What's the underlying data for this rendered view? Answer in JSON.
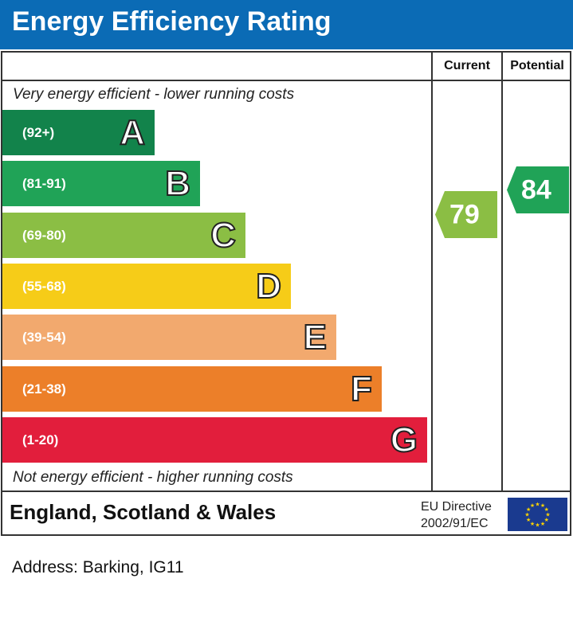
{
  "title": "Energy Efficiency Rating",
  "columns": {
    "current": "Current",
    "potential": "Potential"
  },
  "top_caption": "Very energy efficient - lower running costs",
  "bottom_caption": "Not energy efficient - higher running costs",
  "chart_data": {
    "type": "bar",
    "categories": [
      "A",
      "B",
      "C",
      "D",
      "E",
      "F",
      "G"
    ],
    "ranges": [
      "(92+)",
      "(81-91)",
      "(69-80)",
      "(55-68)",
      "(39-54)",
      "(21-38)",
      "(1-20)"
    ],
    "colors": [
      "#12834b",
      "#20a357",
      "#8bbe44",
      "#f6cc18",
      "#f2a96e",
      "#ec7f29",
      "#e21e3c"
    ],
    "current": {
      "value": 79,
      "band": "C",
      "color": "#8bbe44"
    },
    "potential": {
      "value": 84,
      "band": "B",
      "color": "#20a357"
    }
  },
  "footer": {
    "region": "England, Scotland & Wales",
    "directive_line1": "EU Directive",
    "directive_line2": "2002/91/EC"
  },
  "address": "Address: Barking, IG11"
}
